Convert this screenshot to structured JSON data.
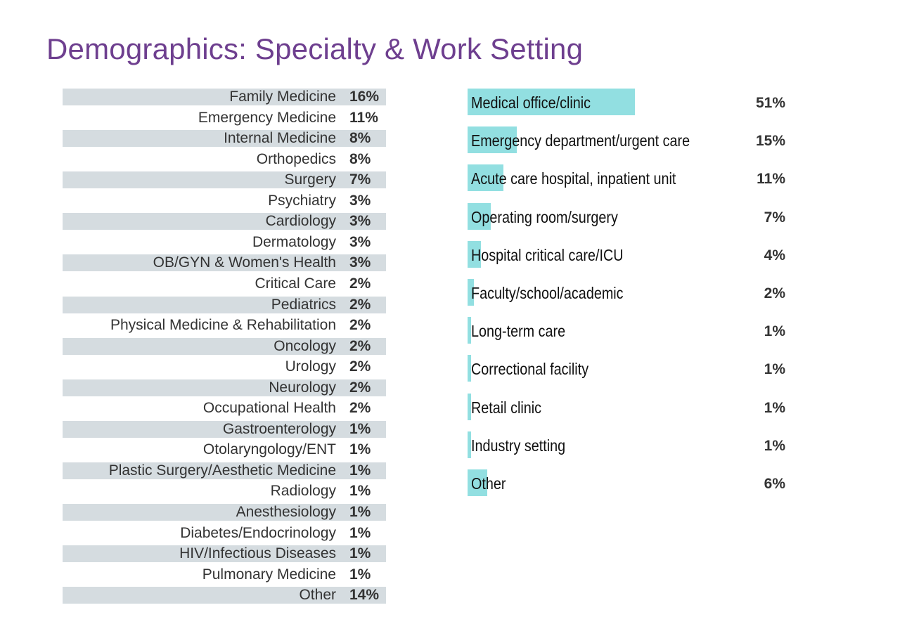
{
  "title": "Demographics: Specialty & Work Setting",
  "chart_data": [
    {
      "type": "table",
      "categories": [
        "Family Medicine",
        "Emergency Medicine",
        "Internal Medicine",
        "Orthopedics",
        "Surgery",
        "Psychiatry",
        "Cardiology",
        "Dermatology",
        "OB/GYN & Women's Health",
        "Critical Care",
        "Pediatrics",
        "Physical Medicine & Rehabilitation",
        "Oncology",
        "Urology",
        "Neurology",
        "Occupational Health",
        "Gastroenterology",
        "Otolaryngology/ENT",
        "Plastic Surgery/Aesthetic Medicine",
        "Radiology",
        "Anesthesiology",
        "Diabetes/Endocrinology",
        "HIV/Infectious Diseases",
        "Pulmonary Medicine",
        "Other"
      ],
      "values": [
        16,
        11,
        8,
        8,
        7,
        3,
        3,
        3,
        3,
        2,
        2,
        2,
        2,
        2,
        2,
        2,
        1,
        1,
        1,
        1,
        1,
        1,
        1,
        1,
        14
      ],
      "value_labels": [
        "16%",
        "11%",
        "8%",
        "8%",
        "7%",
        "3%",
        "3%",
        "3%",
        "3%",
        "2%",
        "2%",
        "2%",
        "2%",
        "2%",
        "2%",
        "2%",
        "1%",
        "1%",
        "1%",
        "1%",
        "1%",
        "1%",
        "1%",
        "1%",
        "14%"
      ],
      "stripe_color": "#d5dce0"
    },
    {
      "type": "bar",
      "orientation": "horizontal",
      "categories": [
        "Medical office/clinic",
        "Emergency department/urgent care",
        "Acute care hospital, inpatient unit",
        "Operating room/surgery",
        "Hospital critical care/ICU",
        "Faculty/school/academic",
        "Long-term care",
        "Correctional facility",
        "Retail clinic",
        "Industry setting",
        "Other"
      ],
      "values": [
        51,
        15,
        11,
        7,
        4,
        2,
        1,
        1,
        1,
        1,
        6
      ],
      "value_labels": [
        "51%",
        "15%",
        "11%",
        "7%",
        "4%",
        "2%",
        "1%",
        "1%",
        "1%",
        "1%",
        "6%"
      ],
      "bar_color": "#92dfe1"
    }
  ]
}
